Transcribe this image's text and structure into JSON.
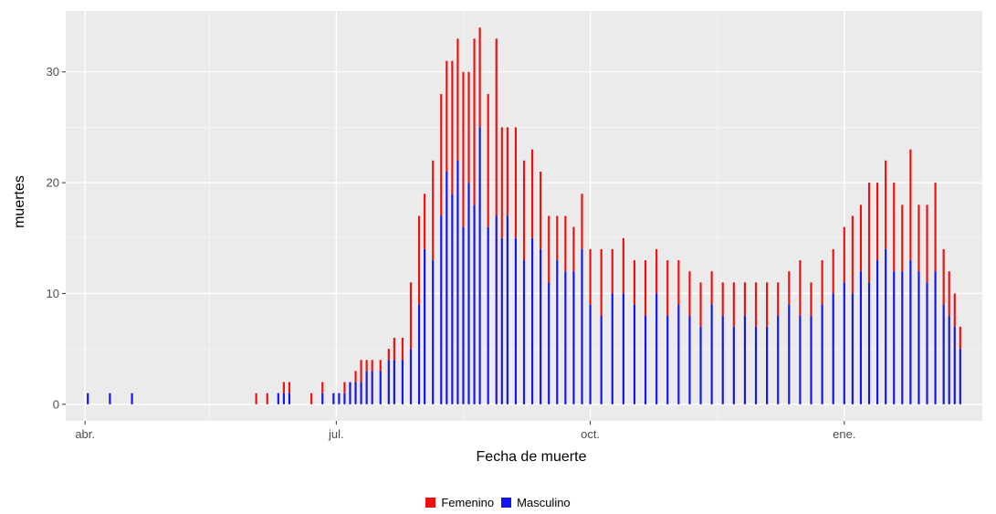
{
  "chart_data": {
    "type": "bar",
    "stacked": true,
    "xlabel": "Fecha de muerte",
    "ylabel": "muertes",
    "x_ticks": [
      "abr.",
      "jul.",
      "oct.",
      "ene."
    ],
    "x_tick_dates": [
      "2020-04-01",
      "2020-07-01",
      "2020-10-01",
      "2021-01-01"
    ],
    "x_range": [
      "2020-03-25",
      "2021-02-20"
    ],
    "y_ticks": [
      0,
      10,
      20,
      30
    ],
    "ylim": [
      -1.5,
      35.5
    ],
    "grid": true,
    "legend_position": "bottom",
    "series": [
      {
        "name": "Femenino",
        "color": "#ee1111"
      },
      {
        "name": "Masculino",
        "color": "#1515f0"
      }
    ],
    "anchors": {
      "dates": [
        "2020-04-02",
        "2020-04-10",
        "2020-04-18",
        "2020-06-02",
        "2020-06-06",
        "2020-06-10",
        "2020-06-12",
        "2020-06-14",
        "2020-06-22",
        "2020-06-26",
        "2020-06-30",
        "2020-07-02",
        "2020-07-04",
        "2020-07-06",
        "2020-07-08",
        "2020-07-10",
        "2020-07-12",
        "2020-07-14",
        "2020-07-17",
        "2020-07-20",
        "2020-07-22",
        "2020-07-25",
        "2020-07-28",
        "2020-07-31",
        "2020-08-02",
        "2020-08-05",
        "2020-08-08",
        "2020-08-10",
        "2020-08-12",
        "2020-08-14",
        "2020-08-16",
        "2020-08-18",
        "2020-08-20",
        "2020-08-22",
        "2020-08-25",
        "2020-08-28",
        "2020-08-30",
        "2020-09-01",
        "2020-09-04",
        "2020-09-07",
        "2020-09-10",
        "2020-09-13",
        "2020-09-16",
        "2020-09-19",
        "2020-09-22",
        "2020-09-25",
        "2020-09-28",
        "2020-10-01",
        "2020-10-05",
        "2020-10-09",
        "2020-10-13",
        "2020-10-17",
        "2020-10-21",
        "2020-10-25",
        "2020-10-29",
        "2020-11-02",
        "2020-11-06",
        "2020-11-10",
        "2020-11-14",
        "2020-11-18",
        "2020-11-22",
        "2020-11-26",
        "2020-11-30",
        "2020-12-04",
        "2020-12-08",
        "2020-12-12",
        "2020-12-16",
        "2020-12-20",
        "2020-12-24",
        "2020-12-28",
        "2021-01-01",
        "2021-01-04",
        "2021-01-07",
        "2021-01-10",
        "2021-01-13",
        "2021-01-16",
        "2021-01-19",
        "2021-01-22",
        "2021-01-25",
        "2021-01-28",
        "2021-01-31",
        "2021-02-03",
        "2021-02-06",
        "2021-02-08",
        "2021-02-10",
        "2021-02-12"
      ],
      "masculino": [
        1,
        1,
        1,
        0,
        0,
        1,
        1,
        1,
        0,
        1,
        1,
        1,
        1,
        2,
        2,
        2,
        3,
        3,
        3,
        4,
        4,
        4,
        5,
        9,
        14,
        13,
        17,
        21,
        19,
        22,
        16,
        20,
        18,
        25,
        16,
        17,
        15,
        17,
        15,
        13,
        15,
        14,
        11,
        13,
        12,
        12,
        14,
        9,
        8,
        10,
        10,
        9,
        8,
        10,
        8,
        9,
        8,
        7,
        9,
        8,
        7,
        8,
        7,
        7,
        8,
        9,
        8,
        8,
        9,
        10,
        11,
        10,
        12,
        11,
        13,
        14,
        12,
        12,
        13,
        12,
        11,
        12,
        9,
        8,
        7,
        5
      ],
      "femenino": [
        0,
        0,
        0,
        1,
        1,
        0,
        1,
        1,
        1,
        1,
        0,
        0,
        1,
        0,
        1,
        2,
        1,
        1,
        1,
        1,
        2,
        2,
        6,
        8,
        5,
        9,
        11,
        10,
        12,
        11,
        14,
        10,
        15,
        9,
        12,
        16,
        10,
        8,
        10,
        9,
        8,
        7,
        6,
        4,
        5,
        4,
        5,
        5,
        6,
        4,
        5,
        4,
        5,
        4,
        5,
        4,
        4,
        4,
        3,
        3,
        4,
        3,
        4,
        4,
        3,
        3,
        5,
        3,
        4,
        4,
        5,
        7,
        6,
        9,
        7,
        8,
        8,
        6,
        10,
        6,
        7,
        8,
        5,
        4,
        3,
        2
      ]
    }
  },
  "legend": {
    "items": [
      {
        "label": "Femenino",
        "color": "#ee1111"
      },
      {
        "label": "Masculino",
        "color": "#1515f0"
      }
    ]
  }
}
